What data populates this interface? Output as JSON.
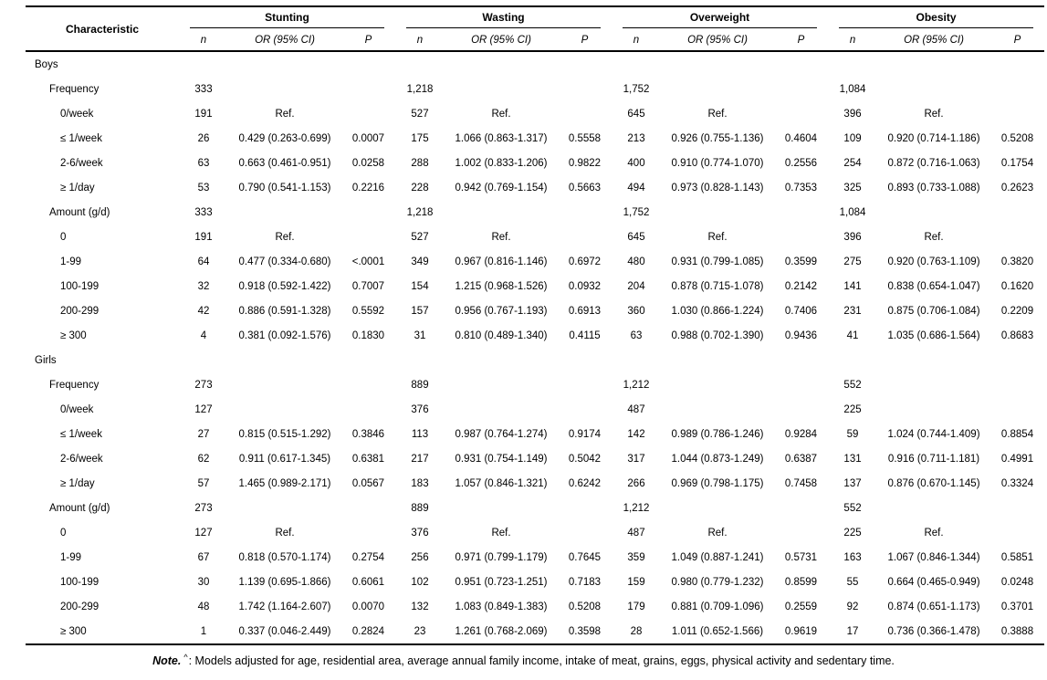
{
  "table": {
    "title_col": "Characteristic",
    "groups": [
      {
        "label": "Stunting"
      },
      {
        "label": "Wasting"
      },
      {
        "label": "Overweight"
      },
      {
        "label": "Obesity"
      }
    ],
    "subheaders": {
      "n": "n",
      "or": "OR (95% CI)",
      "p": "P"
    },
    "sections": [
      {
        "label": "Boys",
        "rows": [
          {
            "label": "Frequency",
            "indent": 1,
            "cells": [
              [
                "333",
                "",
                ""
              ],
              [
                "1,218",
                "",
                ""
              ],
              [
                "1,752",
                "",
                ""
              ],
              [
                "1,084",
                "",
                ""
              ]
            ]
          },
          {
            "label": "0/week",
            "indent": 2,
            "cells": [
              [
                "191",
                "Ref.",
                ""
              ],
              [
                "527",
                "Ref.",
                ""
              ],
              [
                "645",
                "Ref.",
                ""
              ],
              [
                "396",
                "Ref.",
                ""
              ]
            ]
          },
          {
            "label": "≤ 1/week",
            "indent": 2,
            "cells": [
              [
                "26",
                "0.429 (0.263-0.699)",
                "0.0007"
              ],
              [
                "175",
                "1.066 (0.863-1.317)",
                "0.5558"
              ],
              [
                "213",
                "0.926 (0.755-1.136)",
                "0.4604"
              ],
              [
                "109",
                "0.920 (0.714-1.186)",
                "0.5208"
              ]
            ]
          },
          {
            "label": "2-6/week",
            "indent": 2,
            "cells": [
              [
                "63",
                "0.663 (0.461-0.951)",
                "0.0258"
              ],
              [
                "288",
                "1.002 (0.833-1.206)",
                "0.9822"
              ],
              [
                "400",
                "0.910 (0.774-1.070)",
                "0.2556"
              ],
              [
                "254",
                "0.872 (0.716-1.063)",
                "0.1754"
              ]
            ]
          },
          {
            "label": "≥ 1/day",
            "indent": 2,
            "cells": [
              [
                "53",
                "0.790 (0.541-1.153)",
                "0.2216"
              ],
              [
                "228",
                "0.942 (0.769-1.154)",
                "0.5663"
              ],
              [
                "494",
                "0.973 (0.828-1.143)",
                "0.7353"
              ],
              [
                "325",
                "0.893 (0.733-1.088)",
                "0.2623"
              ]
            ]
          },
          {
            "label": "Amount (g/d)",
            "indent": 1,
            "cells": [
              [
                "333",
                "",
                ""
              ],
              [
                "1,218",
                "",
                ""
              ],
              [
                "1,752",
                "",
                ""
              ],
              [
                "1,084",
                "",
                ""
              ]
            ]
          },
          {
            "label": "0",
            "indent": 2,
            "cells": [
              [
                "191",
                "Ref.",
                ""
              ],
              [
                "527",
                "Ref.",
                ""
              ],
              [
                "645",
                "Ref.",
                ""
              ],
              [
                "396",
                "Ref.",
                ""
              ]
            ]
          },
          {
            "label": "1-99",
            "indent": 2,
            "cells": [
              [
                "64",
                "0.477 (0.334-0.680)",
                "<.0001"
              ],
              [
                "349",
                "0.967 (0.816-1.146)",
                "0.6972"
              ],
              [
                "480",
                "0.931 (0.799-1.085)",
                "0.3599"
              ],
              [
                "275",
                "0.920 (0.763-1.109)",
                "0.3820"
              ]
            ]
          },
          {
            "label": "100-199",
            "indent": 2,
            "cells": [
              [
                "32",
                "0.918 (0.592-1.422)",
                "0.7007"
              ],
              [
                "154",
                "1.215 (0.968-1.526)",
                "0.0932"
              ],
              [
                "204",
                "0.878 (0.715-1.078)",
                "0.2142"
              ],
              [
                "141",
                "0.838 (0.654-1.047)",
                "0.1620"
              ]
            ]
          },
          {
            "label": "200-299",
            "indent": 2,
            "cells": [
              [
                "42",
                "0.886 (0.591-1.328)",
                "0.5592"
              ],
              [
                "157",
                "0.956 (0.767-1.193)",
                "0.6913"
              ],
              [
                "360",
                "1.030 (0.866-1.224)",
                "0.7406"
              ],
              [
                "231",
                "0.875 (0.706-1.084)",
                "0.2209"
              ]
            ]
          },
          {
            "label": "≥ 300",
            "indent": 2,
            "cells": [
              [
                "4",
                "0.381 (0.092-1.576)",
                "0.1830"
              ],
              [
                "31",
                "0.810 (0.489-1.340)",
                "0.4115"
              ],
              [
                "63",
                "0.988 (0.702-1.390)",
                "0.9436"
              ],
              [
                "41",
                "1.035 (0.686-1.564)",
                "0.8683"
              ]
            ]
          }
        ]
      },
      {
        "label": "Girls",
        "rows": [
          {
            "label": "Frequency",
            "indent": 1,
            "cells": [
              [
                "273",
                "",
                ""
              ],
              [
                "889",
                "",
                ""
              ],
              [
                "1,212",
                "",
                ""
              ],
              [
                "552",
                "",
                ""
              ]
            ]
          },
          {
            "label": "0/week",
            "indent": 2,
            "cells": [
              [
                "127",
                "",
                ""
              ],
              [
                "376",
                "",
                ""
              ],
              [
                "487",
                "",
                ""
              ],
              [
                "225",
                "",
                ""
              ]
            ]
          },
          {
            "label": "≤ 1/week",
            "indent": 2,
            "cells": [
              [
                "27",
                "0.815 (0.515-1.292)",
                "0.3846"
              ],
              [
                "113",
                "0.987 (0.764-1.274)",
                "0.9174"
              ],
              [
                "142",
                "0.989 (0.786-1.246)",
                "0.9284"
              ],
              [
                "59",
                "1.024 (0.744-1.409)",
                "0.8854"
              ]
            ]
          },
          {
            "label": "2-6/week",
            "indent": 2,
            "cells": [
              [
                "62",
                "0.911 (0.617-1.345)",
                "0.6381"
              ],
              [
                "217",
                "0.931 (0.754-1.149)",
                "0.5042"
              ],
              [
                "317",
                "1.044 (0.873-1.249)",
                "0.6387"
              ],
              [
                "131",
                "0.916 (0.711-1.181)",
                "0.4991"
              ]
            ]
          },
          {
            "label": "≥ 1/day",
            "indent": 2,
            "cells": [
              [
                "57",
                "1.465 (0.989-2.171)",
                "0.0567"
              ],
              [
                "183",
                "1.057 (0.846-1.321)",
                "0.6242"
              ],
              [
                "266",
                "0.969 (0.798-1.175)",
                "0.7458"
              ],
              [
                "137",
                "0.876 (0.670-1.145)",
                "0.3324"
              ]
            ]
          },
          {
            "label": "Amount (g/d)",
            "indent": 1,
            "cells": [
              [
                "273",
                "",
                ""
              ],
              [
                "889",
                "",
                ""
              ],
              [
                "1,212",
                "",
                ""
              ],
              [
                "552",
                "",
                ""
              ]
            ]
          },
          {
            "label": "0",
            "indent": 2,
            "cells": [
              [
                "127",
                "Ref.",
                ""
              ],
              [
                "376",
                "Ref.",
                ""
              ],
              [
                "487",
                "Ref.",
                ""
              ],
              [
                "225",
                "Ref.",
                ""
              ]
            ]
          },
          {
            "label": "1-99",
            "indent": 2,
            "cells": [
              [
                "67",
                "0.818 (0.570-1.174)",
                "0.2754"
              ],
              [
                "256",
                "0.971 (0.799-1.179)",
                "0.7645"
              ],
              [
                "359",
                "1.049 (0.887-1.241)",
                "0.5731"
              ],
              [
                "163",
                "1.067 (0.846-1.344)",
                "0.5851"
              ]
            ]
          },
          {
            "label": "100-199",
            "indent": 2,
            "cells": [
              [
                "30",
                "1.139 (0.695-1.866)",
                "0.6061"
              ],
              [
                "102",
                "0.951 (0.723-1.251)",
                "0.7183"
              ],
              [
                "159",
                "0.980 (0.779-1.232)",
                "0.8599"
              ],
              [
                "55",
                "0.664 (0.465-0.949)",
                "0.0248"
              ]
            ]
          },
          {
            "label": "200-299",
            "indent": 2,
            "cells": [
              [
                "48",
                "1.742 (1.164-2.607)",
                "0.0070"
              ],
              [
                "132",
                "1.083 (0.849-1.383)",
                "0.5208"
              ],
              [
                "179",
                "0.881 (0.709-1.096)",
                "0.2559"
              ],
              [
                "92",
                "0.874 (0.651-1.173)",
                "0.3701"
              ]
            ]
          },
          {
            "label": "≥ 300",
            "indent": 2,
            "cells": [
              [
                "1",
                "0.337 (0.046-2.449)",
                "0.2824"
              ],
              [
                "23",
                "1.261 (0.768-2.069)",
                "0.3598"
              ],
              [
                "28",
                "1.011 (0.652-1.566)",
                "0.9619"
              ],
              [
                "17",
                "0.736 (0.366-1.478)",
                "0.3888"
              ]
            ]
          }
        ]
      }
    ]
  },
  "note": {
    "label": "Note.",
    "superscript": "^",
    "text": ": Models adjusted for age, residential area, average annual family income, intake of meat, grains, eggs, physical activity and sedentary time."
  }
}
